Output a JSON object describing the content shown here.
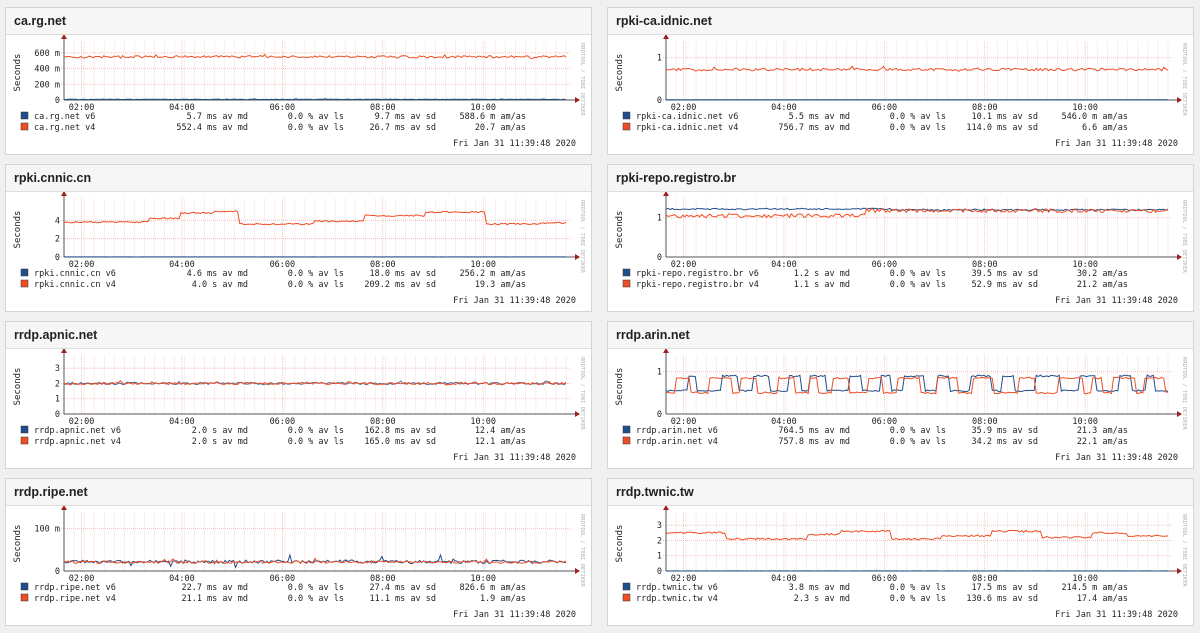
{
  "colors": {
    "v6": "#1f4e8c",
    "v4": "#ee4e24",
    "grid": "#f0b6b6",
    "axis": "#555555",
    "arrow": "#a02020",
    "text": "#222222",
    "sidetext": "#b0b0b0"
  },
  "watermark": "RRDTOOL / TOBI OETIKER",
  "common": {
    "ylabel": "Seconds",
    "date": "Fri Jan 31 11:39:48 2020",
    "x_ticks": [
      "02:00",
      "04:00",
      "06:00",
      "08:00",
      "10:00"
    ]
  },
  "chart_data": [
    {
      "type": "line",
      "title": "ca.rg.net",
      "ylabel": "Seconds",
      "y_ticks": [
        "0",
        "200 m",
        "400 m",
        "600 m"
      ],
      "y_values": [
        0,
        0.2,
        0.4,
        0.6
      ],
      "ylim": [
        0,
        0.7
      ],
      "x_ticks": [
        "02:00",
        "04:00",
        "06:00",
        "08:00",
        "10:00"
      ],
      "series": [
        {
          "name": "v6",
          "base": 0.008,
          "noise": 0.003,
          "spikes": 0.01,
          "levels": [
            [
              0,
              0.008
            ]
          ]
        },
        {
          "name": "v4",
          "base": 0.55,
          "noise": 0.015,
          "spikes": 0.02,
          "levels": [
            [
              0,
              0.55
            ]
          ]
        }
      ],
      "legend": [
        {
          "key": "v6",
          "name": "ca.rg.net v6",
          "avg": "5.7 ms av md",
          "loss": "0.0 % av ls",
          "sd": "9.7 ms av sd",
          "amas": "588.6 m am/as"
        },
        {
          "key": "v4",
          "name": "ca.rg.net v4",
          "avg": "552.4 ms av md",
          "loss": "0.0 % av ls",
          "sd": "26.7 ms av sd",
          "amas": "20.7   am/as"
        }
      ],
      "date": "Fri Jan 31 11:39:48 2020"
    },
    {
      "type": "line",
      "title": "rpki-ca.idnic.net",
      "ylabel": "Seconds",
      "y_ticks": [
        "0",
        "1"
      ],
      "y_values": [
        0,
        1
      ],
      "ylim": [
        0,
        1.3
      ],
      "x_ticks": [
        "02:00",
        "04:00",
        "06:00",
        "08:00",
        "10:00"
      ],
      "series": [
        {
          "name": "v6",
          "base": 0.006,
          "noise": 0.002,
          "spikes": 0.0,
          "levels": [
            [
              0,
              0.006
            ]
          ]
        },
        {
          "name": "v4",
          "base": 0.72,
          "noise": 0.03,
          "spikes": 0.08,
          "levels": [
            [
              0,
              0.72
            ]
          ]
        }
      ],
      "legend": [
        {
          "key": "v6",
          "name": "rpki-ca.idnic.net v6",
          "avg": "5.5 ms av md",
          "loss": "0.0 % av ls",
          "sd": "10.1 ms av sd",
          "amas": "546.0 m am/as"
        },
        {
          "key": "v4",
          "name": "rpki-ca.idnic.net v4",
          "avg": "756.7 ms av md",
          "loss": "0.0 % av ls",
          "sd": "114.0 ms av sd",
          "amas": "6.6   am/as"
        }
      ],
      "date": "Fri Jan 31 11:39:48 2020"
    },
    {
      "type": "line",
      "title": "rpki.cnnic.cn",
      "ylabel": "Seconds",
      "y_ticks": [
        "0",
        "2",
        "4"
      ],
      "y_values": [
        0,
        2,
        4
      ],
      "ylim": [
        0,
        6
      ],
      "x_ticks": [
        "02:00",
        "04:00",
        "06:00",
        "08:00",
        "10:00"
      ],
      "series": [
        {
          "name": "v6",
          "base": 0.01,
          "noise": 0.005,
          "spikes": 0.0,
          "levels": [
            [
              0,
              0.01
            ]
          ]
        },
        {
          "name": "v4",
          "base": 4.0,
          "noise": 0.08,
          "spikes": 0.0,
          "levels": [
            [
              0,
              3.8
            ],
            [
              0.17,
              4.2
            ],
            [
              0.23,
              4.8
            ],
            [
              0.3,
              5.0
            ],
            [
              0.35,
              3.6
            ],
            [
              0.5,
              3.9
            ],
            [
              0.6,
              4.5
            ],
            [
              0.72,
              4.9
            ],
            [
              0.84,
              3.6
            ],
            [
              0.95,
              3.7
            ]
          ]
        }
      ],
      "legend": [
        {
          "key": "v6",
          "name": "rpki.cnnic.cn v6",
          "avg": "4.6 ms av md",
          "loss": "0.0 % av ls",
          "sd": "18.0 ms av sd",
          "amas": "256.2 m am/as"
        },
        {
          "key": "v4",
          "name": "rpki.cnnic.cn v4",
          "avg": "4.0  s av md",
          "loss": "0.0 % av ls",
          "sd": "209.2 ms av sd",
          "amas": "19.3   am/as"
        }
      ],
      "date": "Fri Jan 31 11:39:48 2020"
    },
    {
      "type": "line",
      "title": "rpki-repo.registro.br",
      "ylabel": "Seconds",
      "y_ticks": [
        "0",
        "1"
      ],
      "y_values": [
        0,
        1
      ],
      "ylim": [
        0,
        1.4
      ],
      "x_ticks": [
        "02:00",
        "04:00",
        "06:00",
        "08:00",
        "10:00"
      ],
      "series": [
        {
          "name": "v6",
          "base": 1.2,
          "noise": 0.02,
          "spikes": 0.0,
          "levels": [
            [
              0,
              1.22
            ],
            [
              0.45,
              1.2
            ]
          ]
        },
        {
          "name": "v4",
          "base": 1.1,
          "noise": 0.05,
          "spikes": 0.0,
          "levels": [
            [
              0,
              1.05
            ],
            [
              0.4,
              1.18
            ]
          ]
        }
      ],
      "legend": [
        {
          "key": "v6",
          "name": "rpki-repo.registro.br v6",
          "avg": "1.2  s av md",
          "loss": "0.0 % av ls",
          "sd": "39.5 ms av sd",
          "amas": "30.2   am/as"
        },
        {
          "key": "v4",
          "name": "rpki-repo.registro.br v4",
          "avg": "1.1  s av md",
          "loss": "0.0 % av ls",
          "sd": "52.9 ms av sd",
          "amas": "21.2   am/as"
        }
      ],
      "date": "Fri Jan 31 11:39:48 2020"
    },
    {
      "type": "line",
      "title": "rrdp.apnic.net",
      "ylabel": "Seconds",
      "y_ticks": [
        "0",
        "1",
        "2",
        "3"
      ],
      "y_values": [
        0,
        1,
        2,
        3
      ],
      "ylim": [
        0,
        3.6
      ],
      "x_ticks": [
        "02:00",
        "04:00",
        "06:00",
        "08:00",
        "10:00"
      ],
      "series": [
        {
          "name": "v6",
          "base": 2.0,
          "noise": 0.08,
          "spikes": 0.15,
          "levels": [
            [
              0,
              2.0
            ]
          ]
        },
        {
          "name": "v4",
          "base": 2.0,
          "noise": 0.08,
          "spikes": 0.15,
          "levels": [
            [
              0,
              2.0
            ]
          ]
        }
      ],
      "legend": [
        {
          "key": "v6",
          "name": "rrdp.apnic.net v6",
          "avg": "2.0  s av md",
          "loss": "0.0 % av ls",
          "sd": "162.8 ms av sd",
          "amas": "12.4   am/as"
        },
        {
          "key": "v4",
          "name": "rrdp.apnic.net v4",
          "avg": "2.0  s av md",
          "loss": "0.0 % av ls",
          "sd": "165.0 ms av sd",
          "amas": "12.1   am/as"
        }
      ],
      "date": "Fri Jan 31 11:39:48 2020"
    },
    {
      "type": "line",
      "title": "rrdp.arin.net",
      "ylabel": "Seconds",
      "y_ticks": [
        "0",
        "1"
      ],
      "y_values": [
        0,
        1
      ],
      "ylim": [
        0,
        1.3
      ],
      "x_ticks": [
        "02:00",
        "04:00",
        "06:00",
        "08:00",
        "10:00"
      ],
      "series": [
        {
          "name": "v6",
          "base": 0.76,
          "noise": 0.02,
          "spikes": 0.0,
          "levels": [
            [
              0,
              0.76
            ]
          ],
          "square": true,
          "square_low": 0.55,
          "square_high": 0.9
        },
        {
          "name": "v4",
          "base": 0.76,
          "noise": 0.02,
          "spikes": 0.0,
          "levels": [
            [
              0,
              0.76
            ]
          ],
          "square": true,
          "square_low": 0.5,
          "square_high": 0.85
        }
      ],
      "legend": [
        {
          "key": "v6",
          "name": "rrdp.arin.net v6",
          "avg": "764.5 ms av md",
          "loss": "0.0 % av ls",
          "sd": "35.9 ms av sd",
          "amas": "21.3   am/as"
        },
        {
          "key": "v4",
          "name": "rrdp.arin.net v4",
          "avg": "757.8 ms av md",
          "loss": "0.0 % av ls",
          "sd": "34.2 ms av sd",
          "amas": "22.1   am/as"
        }
      ],
      "date": "Fri Jan 31 11:39:48 2020"
    },
    {
      "type": "line",
      "title": "rrdp.ripe.net",
      "ylabel": "Seconds",
      "y_ticks": [
        "0",
        "100 m"
      ],
      "y_values": [
        0,
        0.1
      ],
      "ylim": [
        0,
        0.13
      ],
      "x_ticks": [
        "02:00",
        "04:00",
        "06:00",
        "08:00",
        "10:00"
      ],
      "series": [
        {
          "name": "v6",
          "base": 0.022,
          "noise": 0.004,
          "spikes": 0.03,
          "levels": [
            [
              0,
              0.022
            ]
          ]
        },
        {
          "name": "v4",
          "base": 0.021,
          "noise": 0.003,
          "spikes": 0.01,
          "levels": [
            [
              0,
              0.021
            ]
          ]
        }
      ],
      "legend": [
        {
          "key": "v6",
          "name": "rrdp.ripe.net v6",
          "avg": "22.7 ms av md",
          "loss": "0.0 % av ls",
          "sd": "27.4 ms av sd",
          "amas": "826.6 m am/as"
        },
        {
          "key": "v4",
          "name": "rrdp.ripe.net v4",
          "avg": "21.1 ms av md",
          "loss": "0.0 % av ls",
          "sd": "11.1 ms av sd",
          "amas": "1.9   am/as"
        }
      ],
      "date": "Fri Jan 31 11:39:48 2020"
    },
    {
      "type": "line",
      "title": "rrdp.twnic.tw",
      "ylabel": "Seconds",
      "y_ticks": [
        "0",
        "1",
        "2",
        "3"
      ],
      "y_values": [
        0,
        1,
        2,
        3
      ],
      "ylim": [
        0,
        3.6
      ],
      "x_ticks": [
        "02:00",
        "04:00",
        "06:00",
        "08:00",
        "10:00"
      ],
      "series": [
        {
          "name": "v6",
          "base": 0.004,
          "noise": 0.002,
          "spikes": 0.0,
          "levels": [
            [
              0,
              0.004
            ]
          ]
        },
        {
          "name": "v4",
          "base": 2.3,
          "noise": 0.06,
          "spikes": 0.0,
          "levels": [
            [
              0,
              2.5
            ],
            [
              0.12,
              2.1
            ],
            [
              0.28,
              2.4
            ],
            [
              0.35,
              2.6
            ],
            [
              0.45,
              2.1
            ],
            [
              0.55,
              2.3
            ],
            [
              0.65,
              2.6
            ],
            [
              0.75,
              2.2
            ],
            [
              0.85,
              2.5
            ],
            [
              0.92,
              2.3
            ]
          ]
        }
      ],
      "legend": [
        {
          "key": "v6",
          "name": "rrdp.twnic.tw v6",
          "avg": "3.8 ms av md",
          "loss": "0.0 % av ls",
          "sd": "17.5 ms av sd",
          "amas": "214.5 m am/as"
        },
        {
          "key": "v4",
          "name": "rrdp.twnic.tw v4",
          "avg": "2.3  s av md",
          "loss": "0.0 % av ls",
          "sd": "130.6 ms av sd",
          "amas": "17.4   am/as"
        }
      ],
      "date": "Fri Jan 31 11:39:48 2020"
    }
  ]
}
